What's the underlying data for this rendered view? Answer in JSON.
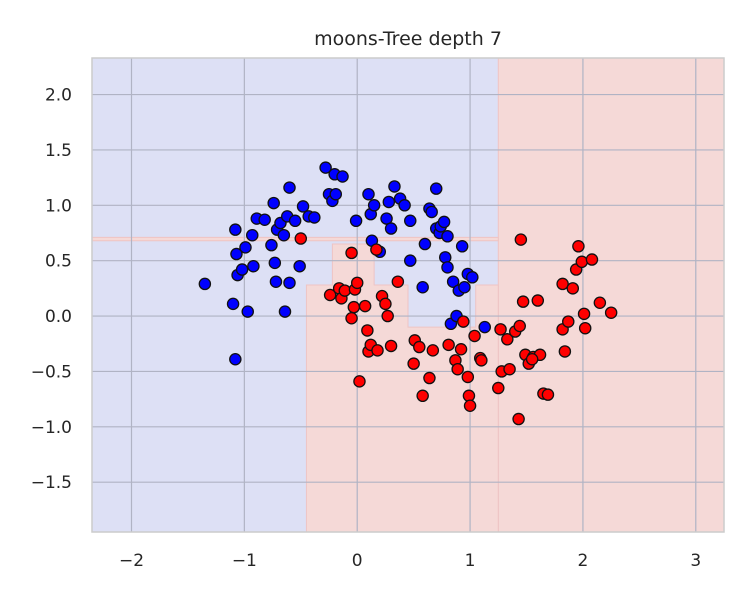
{
  "chart_data": {
    "type": "scatter",
    "title": "moons-Tree depth 7",
    "xlabel": "",
    "ylabel": "",
    "xlim": [
      -2.35,
      3.25
    ],
    "ylim": [
      -1.95,
      2.33
    ],
    "x_ticks": [
      -2,
      -1,
      0,
      1,
      2,
      3
    ],
    "x_tick_labels": [
      "−2",
      "−1",
      "0",
      "1",
      "2",
      "3"
    ],
    "y_ticks": [
      -1.5,
      -1.0,
      -0.5,
      0.0,
      0.5,
      1.0,
      1.5,
      2.0
    ],
    "y_tick_labels": [
      "−1.5",
      "−1.0",
      "−0.5",
      "0.0",
      "0.5",
      "1.0",
      "1.5",
      "2.0"
    ],
    "grid": true,
    "colors": {
      "class_0_region": "#dde0f5",
      "class_1_region": "#f5d9d7",
      "class_0_point": "#0000ff",
      "class_1_point": "#ff0000",
      "point_edge": "#111111",
      "grid": "#b0b3c4",
      "frame": "#cccccc"
    },
    "decision_regions": {
      "class_1": [
        [
          [
            1.25,
            2.33
          ],
          [
            3.25,
            2.33
          ],
          [
            3.25,
            -1.95
          ],
          [
            1.25,
            -1.95
          ]
        ],
        [
          [
            -0.45,
            0.28
          ],
          [
            -0.22,
            0.28
          ],
          [
            -0.22,
            0.52
          ],
          [
            -0.22,
            0.52
          ],
          [
            -0.22,
            0.65
          ],
          [
            0.15,
            0.65
          ],
          [
            0.15,
            0.28
          ],
          [
            0.15,
            0.28
          ],
          [
            0.45,
            0.28
          ],
          [
            0.45,
            -0.1
          ],
          [
            1.05,
            -0.1
          ],
          [
            1.05,
            0.28
          ],
          [
            1.25,
            0.28
          ],
          [
            1.25,
            -1.95
          ],
          [
            -0.45,
            -1.95
          ]
        ]
      ],
      "class_1_strips": [
        [
          [
            -2.35,
            0.71
          ],
          [
            1.25,
            0.71
          ],
          [
            1.25,
            0.68
          ],
          [
            -2.35,
            0.68
          ]
        ]
      ]
    },
    "series": [
      {
        "class": 0,
        "points": [
          [
            -1.35,
            0.29
          ],
          [
            -1.1,
            0.11
          ],
          [
            -1.08,
            -0.39
          ],
          [
            -1.08,
            0.78
          ],
          [
            -1.07,
            0.56
          ],
          [
            -1.06,
            0.37
          ],
          [
            -1.02,
            0.42
          ],
          [
            -0.99,
            0.62
          ],
          [
            -0.97,
            0.04
          ],
          [
            -0.93,
            0.73
          ],
          [
            -0.92,
            0.45
          ],
          [
            -0.89,
            0.88
          ],
          [
            -0.82,
            0.87
          ],
          [
            -0.76,
            0.64
          ],
          [
            -0.74,
            1.02
          ],
          [
            -0.73,
            0.48
          ],
          [
            -0.72,
            0.31
          ],
          [
            -0.71,
            0.78
          ],
          [
            -0.68,
            0.84
          ],
          [
            -0.65,
            0.73
          ],
          [
            -0.64,
            0.04
          ],
          [
            -0.62,
            0.9
          ],
          [
            -0.6,
            0.3
          ],
          [
            -0.6,
            1.16
          ],
          [
            -0.55,
            0.86
          ],
          [
            -0.51,
            0.45
          ],
          [
            -0.48,
            0.99
          ],
          [
            -0.43,
            0.9
          ],
          [
            -0.38,
            0.89
          ],
          [
            -0.28,
            1.34
          ],
          [
            -0.25,
            1.1
          ],
          [
            -0.22,
            1.04
          ],
          [
            -0.2,
            1.28
          ],
          [
            -0.19,
            1.1
          ],
          [
            -0.13,
            1.26
          ],
          [
            -0.01,
            0.86
          ],
          [
            0.1,
            1.1
          ],
          [
            0.12,
            0.92
          ],
          [
            0.13,
            0.68
          ],
          [
            0.15,
            1.0
          ],
          [
            0.2,
            0.58
          ],
          [
            0.26,
            0.88
          ],
          [
            0.28,
            1.03
          ],
          [
            0.3,
            0.79
          ],
          [
            0.33,
            1.17
          ],
          [
            0.38,
            1.06
          ],
          [
            0.42,
            1.0
          ],
          [
            0.47,
            0.86
          ],
          [
            0.47,
            0.5
          ],
          [
            0.58,
            0.26
          ],
          [
            0.6,
            0.65
          ],
          [
            0.64,
            0.97
          ],
          [
            0.66,
            0.94
          ],
          [
            0.7,
            0.79
          ],
          [
            0.7,
            1.15
          ],
          [
            0.73,
            0.75
          ],
          [
            0.74,
            0.81
          ],
          [
            0.77,
            0.85
          ],
          [
            0.78,
            0.53
          ],
          [
            0.8,
            0.72
          ],
          [
            0.8,
            0.44
          ],
          [
            0.83,
            -0.07
          ],
          [
            0.85,
            0.31
          ],
          [
            0.88,
            0.0
          ],
          [
            0.9,
            0.23
          ],
          [
            0.93,
            0.63
          ],
          [
            0.95,
            0.26
          ],
          [
            0.98,
            0.38
          ],
          [
            1.02,
            0.35
          ],
          [
            1.13,
            -0.1
          ]
        ]
      },
      {
        "class": 1,
        "points": [
          [
            -0.5,
            0.7
          ],
          [
            -0.24,
            0.19
          ],
          [
            -0.16,
            0.25
          ],
          [
            -0.14,
            0.16
          ],
          [
            -0.11,
            0.23
          ],
          [
            -0.05,
            0.57
          ],
          [
            -0.05,
            -0.02
          ],
          [
            -0.03,
            0.08
          ],
          [
            -0.02,
            0.24
          ],
          [
            0.0,
            0.3
          ],
          [
            0.02,
            -0.59
          ],
          [
            0.07,
            0.09
          ],
          [
            0.09,
            -0.13
          ],
          [
            0.1,
            -0.32
          ],
          [
            0.12,
            -0.26
          ],
          [
            0.17,
            0.6
          ],
          [
            0.18,
            -0.31
          ],
          [
            0.22,
            0.18
          ],
          [
            0.25,
            0.11
          ],
          [
            0.27,
            0.0
          ],
          [
            0.3,
            -0.27
          ],
          [
            0.36,
            0.31
          ],
          [
            0.5,
            -0.43
          ],
          [
            0.51,
            -0.22
          ],
          [
            0.55,
            -0.28
          ],
          [
            0.58,
            -0.72
          ],
          [
            0.64,
            -0.56
          ],
          [
            0.67,
            -0.31
          ],
          [
            0.81,
            -0.26
          ],
          [
            0.87,
            -0.4
          ],
          [
            0.89,
            -0.48
          ],
          [
            0.92,
            -0.3
          ],
          [
            0.94,
            -0.05
          ],
          [
            0.98,
            -0.55
          ],
          [
            0.99,
            -0.72
          ],
          [
            1.0,
            -0.81
          ],
          [
            1.04,
            -0.18
          ],
          [
            1.09,
            -0.38
          ],
          [
            1.1,
            -0.4
          ],
          [
            1.25,
            -0.65
          ],
          [
            1.27,
            -0.12
          ],
          [
            1.28,
            -0.5
          ],
          [
            1.33,
            -0.21
          ],
          [
            1.35,
            -0.48
          ],
          [
            1.4,
            -0.14
          ],
          [
            1.43,
            -0.93
          ],
          [
            1.44,
            -0.09
          ],
          [
            1.45,
            0.69
          ],
          [
            1.47,
            0.13
          ],
          [
            1.49,
            -0.35
          ],
          [
            1.52,
            -0.43
          ],
          [
            1.56,
            -0.37
          ],
          [
            1.6,
            0.14
          ],
          [
            1.62,
            -0.35
          ],
          [
            1.65,
            -0.7
          ],
          [
            1.69,
            -0.71
          ],
          [
            1.84,
            -0.32
          ],
          [
            1.82,
            0.29
          ],
          [
            1.82,
            -0.12
          ],
          [
            1.87,
            -0.05
          ],
          [
            1.91,
            0.25
          ],
          [
            1.94,
            0.42
          ],
          [
            1.96,
            0.63
          ],
          [
            1.99,
            0.49
          ],
          [
            2.01,
            0.02
          ],
          [
            2.02,
            -0.11
          ],
          [
            2.08,
            0.51
          ],
          [
            2.15,
            0.12
          ],
          [
            2.25,
            0.03
          ],
          [
            1.55,
            -0.39
          ]
        ]
      }
    ]
  }
}
